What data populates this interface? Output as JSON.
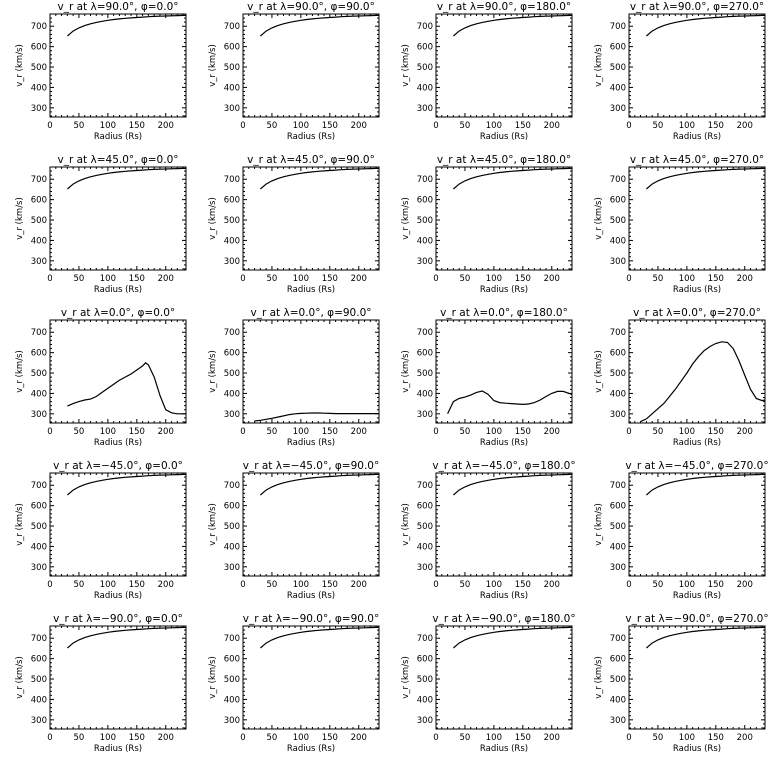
{
  "axes": {
    "xlabel": "Radius (Rs)",
    "ylabel": "v_r (km/s)",
    "xlim": [
      0,
      235
    ],
    "ylim": [
      255,
      760
    ],
    "xticks": [
      0,
      50,
      100,
      150,
      200
    ],
    "yticks": [
      300,
      400,
      500,
      600,
      700
    ]
  },
  "chart_data": [
    {
      "type": "line",
      "title": "v_r at λ=90.0°, φ=0.0°",
      "x": [
        30,
        40,
        50,
        60,
        70,
        80,
        90,
        100,
        110,
        120,
        130,
        140,
        150,
        160,
        170,
        180,
        190,
        200,
        210,
        220,
        230,
        235
      ],
      "y": [
        652,
        676,
        692,
        703,
        712,
        719,
        724,
        729,
        733,
        736,
        739,
        741,
        743,
        745,
        747,
        748,
        749,
        750,
        751,
        752,
        753,
        753
      ]
    },
    {
      "type": "line",
      "title": "v_r at λ=90.0°, φ=90.0°",
      "x": [
        30,
        40,
        50,
        60,
        70,
        80,
        90,
        100,
        110,
        120,
        130,
        140,
        150,
        160,
        170,
        180,
        190,
        200,
        210,
        220,
        230,
        235
      ],
      "y": [
        652,
        676,
        692,
        703,
        712,
        719,
        724,
        729,
        733,
        736,
        739,
        741,
        743,
        745,
        747,
        748,
        749,
        750,
        751,
        752,
        753,
        753
      ]
    },
    {
      "type": "line",
      "title": "v_r at λ=90.0°, φ=180.0°",
      "x": [
        30,
        40,
        50,
        60,
        70,
        80,
        90,
        100,
        110,
        120,
        130,
        140,
        150,
        160,
        170,
        180,
        190,
        200,
        210,
        220,
        230,
        235
      ],
      "y": [
        652,
        676,
        692,
        703,
        712,
        719,
        724,
        729,
        733,
        736,
        739,
        741,
        743,
        745,
        747,
        748,
        749,
        750,
        751,
        752,
        753,
        753
      ]
    },
    {
      "type": "line",
      "title": "v_r at λ=90.0°, φ=270.0°",
      "x": [
        30,
        40,
        50,
        60,
        70,
        80,
        90,
        100,
        110,
        120,
        130,
        140,
        150,
        160,
        170,
        180,
        190,
        200,
        210,
        220,
        230,
        235
      ],
      "y": [
        652,
        676,
        692,
        703,
        712,
        719,
        724,
        729,
        733,
        736,
        739,
        741,
        743,
        745,
        747,
        748,
        749,
        750,
        751,
        752,
        753,
        753
      ]
    },
    {
      "type": "line",
      "title": "v_r at λ=45.0°, φ=0.0°",
      "x": [
        30,
        40,
        50,
        60,
        70,
        80,
        90,
        100,
        110,
        120,
        130,
        140,
        150,
        160,
        170,
        180,
        190,
        200,
        210,
        220,
        230,
        235
      ],
      "y": [
        652,
        676,
        692,
        703,
        712,
        719,
        724,
        729,
        733,
        736,
        739,
        741,
        743,
        745,
        747,
        748,
        749,
        750,
        751,
        752,
        753,
        753
      ]
    },
    {
      "type": "line",
      "title": "v_r at λ=45.0°, φ=90.0°",
      "x": [
        30,
        40,
        50,
        60,
        70,
        80,
        90,
        100,
        110,
        120,
        130,
        140,
        150,
        160,
        170,
        180,
        190,
        200,
        210,
        220,
        230,
        235
      ],
      "y": [
        652,
        676,
        692,
        703,
        712,
        719,
        724,
        729,
        733,
        736,
        739,
        741,
        743,
        745,
        747,
        748,
        749,
        750,
        751,
        752,
        753,
        753
      ]
    },
    {
      "type": "line",
      "title": "v_r at λ=45.0°, φ=180.0°",
      "x": [
        30,
        40,
        50,
        60,
        70,
        80,
        90,
        100,
        110,
        120,
        130,
        140,
        150,
        160,
        170,
        180,
        190,
        200,
        210,
        220,
        230,
        235
      ],
      "y": [
        652,
        676,
        692,
        703,
        712,
        719,
        724,
        729,
        733,
        736,
        739,
        741,
        743,
        745,
        747,
        748,
        749,
        750,
        751,
        752,
        753,
        753
      ]
    },
    {
      "type": "line",
      "title": "v_r at λ=45.0°, φ=270.0°",
      "x": [
        30,
        40,
        50,
        60,
        70,
        80,
        90,
        100,
        110,
        120,
        130,
        140,
        150,
        160,
        170,
        180,
        190,
        200,
        210,
        220,
        230,
        235
      ],
      "y": [
        652,
        676,
        692,
        703,
        712,
        719,
        724,
        729,
        733,
        736,
        739,
        741,
        743,
        745,
        747,
        748,
        749,
        750,
        751,
        752,
        753,
        753
      ]
    },
    {
      "type": "line",
      "title": "v_r at λ=0.0°, φ=0.0°",
      "x": [
        30,
        40,
        50,
        60,
        70,
        80,
        90,
        100,
        110,
        120,
        130,
        140,
        150,
        160,
        165,
        170,
        180,
        190,
        200,
        210,
        220,
        230,
        235
      ],
      "y": [
        338,
        350,
        360,
        368,
        372,
        385,
        405,
        425,
        445,
        465,
        480,
        495,
        515,
        535,
        550,
        540,
        480,
        390,
        320,
        305,
        300,
        300,
        300
      ]
    },
    {
      "type": "line",
      "title": "v_r at λ=0.0°, φ=90.0°",
      "x": [
        20,
        30,
        40,
        50,
        60,
        70,
        80,
        90,
        100,
        110,
        120,
        130,
        140,
        150,
        160,
        170,
        180,
        190,
        200,
        210,
        220,
        230,
        235
      ],
      "y": [
        265,
        268,
        273,
        278,
        284,
        290,
        296,
        300,
        302,
        303,
        304,
        304,
        303,
        302,
        301,
        301,
        301,
        301,
        301,
        301,
        301,
        301,
        301
      ]
    },
    {
      "type": "line",
      "title": "v_r at λ=0.0°, φ=180.0°",
      "x": [
        20,
        30,
        40,
        50,
        60,
        70,
        80,
        90,
        100,
        110,
        120,
        130,
        140,
        150,
        160,
        170,
        180,
        190,
        200,
        210,
        220,
        230,
        235
      ],
      "y": [
        300,
        360,
        375,
        382,
        392,
        405,
        412,
        395,
        365,
        355,
        352,
        350,
        348,
        346,
        348,
        355,
        368,
        385,
        400,
        410,
        410,
        400,
        395
      ]
    },
    {
      "type": "line",
      "title": "v_r at λ=0.0°, φ=270.0°",
      "x": [
        20,
        30,
        40,
        50,
        60,
        70,
        80,
        90,
        100,
        110,
        120,
        130,
        140,
        150,
        160,
        170,
        180,
        190,
        200,
        210,
        220,
        230,
        235
      ],
      "y": [
        262,
        275,
        300,
        325,
        350,
        385,
        420,
        460,
        500,
        545,
        580,
        610,
        630,
        645,
        653,
        650,
        620,
        560,
        490,
        420,
        375,
        365,
        368
      ]
    },
    {
      "type": "line",
      "title": "v_r at λ=−45.0°, φ=0.0°",
      "x": [
        30,
        40,
        50,
        60,
        70,
        80,
        90,
        100,
        110,
        120,
        130,
        140,
        150,
        160,
        170,
        180,
        190,
        200,
        210,
        220,
        230,
        235
      ],
      "y": [
        652,
        676,
        692,
        703,
        712,
        719,
        724,
        729,
        733,
        736,
        739,
        741,
        743,
        745,
        747,
        748,
        749,
        750,
        751,
        752,
        753,
        753
      ]
    },
    {
      "type": "line",
      "title": "v_r at λ=−45.0°, φ=90.0°",
      "x": [
        30,
        40,
        50,
        60,
        70,
        80,
        90,
        100,
        110,
        120,
        130,
        140,
        150,
        160,
        170,
        180,
        190,
        200,
        210,
        220,
        230,
        235
      ],
      "y": [
        652,
        676,
        692,
        703,
        712,
        719,
        724,
        729,
        733,
        736,
        739,
        741,
        743,
        745,
        747,
        748,
        749,
        750,
        751,
        752,
        753,
        753
      ]
    },
    {
      "type": "line",
      "title": "v_r at λ=−45.0°, φ=180.0°",
      "x": [
        30,
        40,
        50,
        60,
        70,
        80,
        90,
        100,
        110,
        120,
        130,
        140,
        150,
        160,
        170,
        180,
        190,
        200,
        210,
        220,
        230,
        235
      ],
      "y": [
        652,
        676,
        692,
        703,
        712,
        719,
        724,
        729,
        733,
        736,
        739,
        741,
        743,
        745,
        747,
        748,
        749,
        750,
        751,
        752,
        753,
        753
      ]
    },
    {
      "type": "line",
      "title": "v_r at λ=−45.0°, φ=270.0°",
      "x": [
        30,
        40,
        50,
        60,
        70,
        80,
        90,
        100,
        110,
        120,
        130,
        140,
        150,
        160,
        170,
        180,
        190,
        200,
        210,
        220,
        230,
        235
      ],
      "y": [
        652,
        676,
        692,
        703,
        712,
        719,
        724,
        729,
        733,
        736,
        739,
        741,
        743,
        745,
        747,
        748,
        749,
        750,
        751,
        752,
        753,
        753
      ]
    },
    {
      "type": "line",
      "title": "v_r at λ=−90.0°, φ=0.0°",
      "x": [
        30,
        40,
        50,
        60,
        70,
        80,
        90,
        100,
        110,
        120,
        130,
        140,
        150,
        160,
        170,
        180,
        190,
        200,
        210,
        220,
        230,
        235
      ],
      "y": [
        652,
        676,
        692,
        703,
        712,
        719,
        724,
        729,
        733,
        736,
        739,
        741,
        743,
        745,
        747,
        748,
        749,
        750,
        751,
        752,
        753,
        753
      ]
    },
    {
      "type": "line",
      "title": "v_r at λ=−90.0°, φ=90.0°",
      "x": [
        30,
        40,
        50,
        60,
        70,
        80,
        90,
        100,
        110,
        120,
        130,
        140,
        150,
        160,
        170,
        180,
        190,
        200,
        210,
        220,
        230,
        235
      ],
      "y": [
        652,
        676,
        692,
        703,
        712,
        719,
        724,
        729,
        733,
        736,
        739,
        741,
        743,
        745,
        747,
        748,
        749,
        750,
        751,
        752,
        753,
        753
      ]
    },
    {
      "type": "line",
      "title": "v_r at λ=−90.0°, φ=180.0°",
      "x": [
        30,
        40,
        50,
        60,
        70,
        80,
        90,
        100,
        110,
        120,
        130,
        140,
        150,
        160,
        170,
        180,
        190,
        200,
        210,
        220,
        230,
        235
      ],
      "y": [
        652,
        676,
        692,
        703,
        712,
        719,
        724,
        729,
        733,
        736,
        739,
        741,
        743,
        745,
        747,
        748,
        749,
        750,
        751,
        752,
        753,
        753
      ]
    },
    {
      "type": "line",
      "title": "v_r at λ=−90.0°, φ=270.0°",
      "x": [
        30,
        40,
        50,
        60,
        70,
        80,
        90,
        100,
        110,
        120,
        130,
        140,
        150,
        160,
        170,
        180,
        190,
        200,
        210,
        220,
        230,
        235
      ],
      "y": [
        652,
        676,
        692,
        703,
        712,
        719,
        724,
        729,
        733,
        736,
        739,
        741,
        743,
        745,
        747,
        748,
        749,
        750,
        751,
        752,
        753,
        753
      ]
    }
  ]
}
